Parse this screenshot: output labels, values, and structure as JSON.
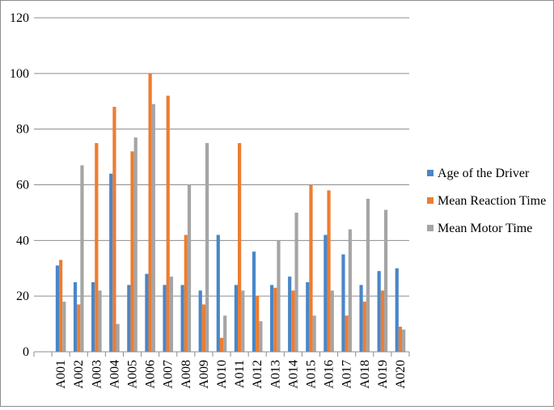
{
  "chart_data": {
    "type": "bar",
    "title": "",
    "xlabel": "",
    "ylabel": "",
    "ylim": [
      0,
      120
    ],
    "yticks": [
      0,
      20,
      40,
      60,
      80,
      100,
      120
    ],
    "grid": true,
    "legend_position": "right",
    "categories": [
      "A001",
      "A002",
      "A003",
      "A004",
      "A005",
      "A006",
      "A007",
      "A008",
      "A009",
      "A010",
      "A011",
      "A012",
      "A013",
      "A014",
      "A015",
      "A016",
      "A017",
      "A018",
      "A019",
      "A020"
    ],
    "series": [
      {
        "name": "Age of the Driver",
        "color": "#4a86c8",
        "values": [
          31,
          25,
          25,
          64,
          24,
          28,
          24,
          24,
          22,
          42,
          24,
          36,
          24,
          27,
          25,
          42,
          35,
          24,
          29,
          30
        ]
      },
      {
        "name": "Mean Reaction Time",
        "color": "#ed7d31",
        "values": [
          33,
          17,
          75,
          88,
          72,
          100,
          92,
          42,
          17,
          5,
          75,
          20,
          23,
          22,
          60,
          58,
          13,
          18,
          22,
          9
        ]
      },
      {
        "name": "Mean Motor Time",
        "color": "#a5a5a5",
        "values": [
          18,
          67,
          22,
          10,
          77,
          89,
          27,
          60,
          75,
          13,
          22,
          11,
          40,
          50,
          13,
          22,
          44,
          55,
          51,
          8
        ]
      }
    ]
  }
}
